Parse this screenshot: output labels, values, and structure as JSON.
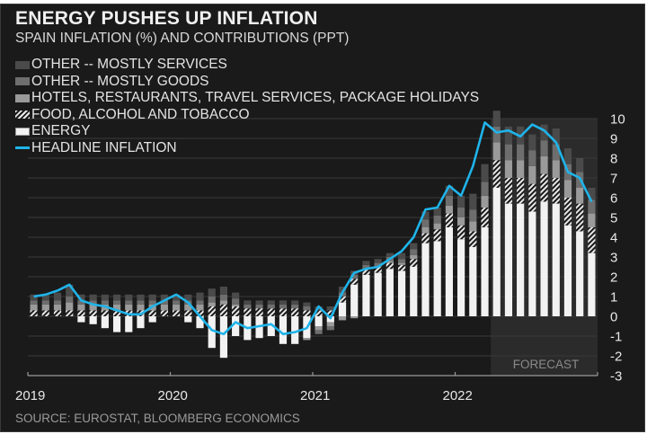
{
  "title": "ENERGY PUSHES UP INFLATION",
  "subtitle": "SPAIN INFLATION (%) AND CONTRIBUTIONS (PPT)",
  "source": "SOURCE: EUROSTAT, BLOOMBERG ECONOMICS",
  "forecast_label": "FORECAST",
  "colors": {
    "background": "#1a1a1a",
    "other_services": "#4a4a4a",
    "other_goods": "#6e6e6e",
    "hotels": "#9a9a9a",
    "food": "#e8e8e8",
    "energy": "#f2f2f2",
    "headline": "#1fb4ea",
    "forecast_shade": "#2b2b2b"
  },
  "chart_data": {
    "type": "bar",
    "stacked": true,
    "title": "ENERGY PUSHES UP INFLATION",
    "subtitle": "SPAIN INFLATION (%) AND CONTRIBUTIONS (PPT)",
    "xlabel": "",
    "ylabel": "",
    "ylim": [
      -3,
      10
    ],
    "yticks": [
      10,
      9,
      8,
      7,
      6,
      5,
      4,
      3,
      2,
      1,
      0,
      -1,
      -2,
      -3
    ],
    "xtick_labels": [
      "2019",
      "2020",
      "2021",
      "2022"
    ],
    "grid": true,
    "legend_position": "top-left",
    "forecast_start_index": 39,
    "categories": [
      "2019-01",
      "2019-02",
      "2019-03",
      "2019-04",
      "2019-05",
      "2019-06",
      "2019-07",
      "2019-08",
      "2019-09",
      "2019-10",
      "2019-11",
      "2019-12",
      "2020-01",
      "2020-02",
      "2020-03",
      "2020-04",
      "2020-05",
      "2020-06",
      "2020-07",
      "2020-08",
      "2020-09",
      "2020-10",
      "2020-11",
      "2020-12",
      "2021-01",
      "2021-02",
      "2021-03",
      "2021-04",
      "2021-05",
      "2021-06",
      "2021-07",
      "2021-08",
      "2021-09",
      "2021-10",
      "2021-11",
      "2021-12",
      "2022-01",
      "2022-02",
      "2022-03",
      "2022-04",
      "2022-05",
      "2022-06",
      "2022-07",
      "2022-08",
      "2022-09",
      "2022-10",
      "2022-11",
      "2022-12"
    ],
    "series": [
      {
        "name": "ENERGY",
        "type": "bar",
        "values": [
          0.0,
          0.0,
          0.0,
          0.0,
          -0.3,
          -0.4,
          -0.6,
          -0.8,
          -0.8,
          -0.6,
          -0.3,
          0.0,
          0.0,
          -0.3,
          -0.6,
          -1.6,
          -2.1,
          -1.0,
          -1.2,
          -1.1,
          -1.0,
          -1.4,
          -1.4,
          -1.1,
          -0.5,
          -0.3,
          0.7,
          1.6,
          2.1,
          2.2,
          2.4,
          2.3,
          2.5,
          3.7,
          3.8,
          4.5,
          3.9,
          3.5,
          4.5,
          6.5,
          5.7,
          5.7,
          5.3,
          5.8,
          5.7,
          4.6,
          4.3,
          3.2
        ]
      },
      {
        "name": "FOOD, ALCOHOL AND TOBACCO",
        "type": "bar",
        "values": [
          0.3,
          0.3,
          0.3,
          0.3,
          0.3,
          0.3,
          0.3,
          0.3,
          0.3,
          0.3,
          0.3,
          0.3,
          0.3,
          0.3,
          0.3,
          0.5,
          0.6,
          0.5,
          0.4,
          0.4,
          0.4,
          0.4,
          0.4,
          0.3,
          0.3,
          0.3,
          0.3,
          0.3,
          0.3,
          0.3,
          0.3,
          0.3,
          0.4,
          0.5,
          0.6,
          0.7,
          0.7,
          0.8,
          1.0,
          1.4,
          1.3,
          1.3,
          1.4,
          1.4,
          1.3,
          1.4,
          1.4,
          1.3
        ]
      },
      {
        "name": "HOTELS, RESTAURANTS, TRAVEL SERVICES, PACKAGE HOLIDAYS",
        "type": "bar",
        "values": [
          0.3,
          0.3,
          0.3,
          0.4,
          0.3,
          0.3,
          0.3,
          0.3,
          0.3,
          0.3,
          0.3,
          0.3,
          0.3,
          0.3,
          0.3,
          0.2,
          0.2,
          0.1,
          0.0,
          0.0,
          0.0,
          0.0,
          0.0,
          -0.1,
          -0.2,
          -0.2,
          -0.2,
          -0.1,
          0.0,
          0.0,
          0.1,
          0.1,
          0.2,
          0.3,
          0.3,
          0.4,
          0.4,
          0.5,
          0.6,
          0.9,
          0.9,
          0.9,
          0.9,
          0.9,
          0.9,
          0.9,
          0.8,
          0.7
        ]
      },
      {
        "name": "OTHER -- MOSTLY GOODS",
        "type": "bar",
        "values": [
          0.2,
          0.2,
          0.2,
          0.3,
          0.2,
          0.2,
          0.2,
          0.2,
          0.2,
          0.2,
          0.2,
          0.2,
          0.2,
          0.2,
          0.2,
          0.3,
          0.3,
          0.3,
          0.2,
          0.2,
          0.2,
          0.2,
          0.2,
          0.2,
          -0.2,
          -0.2,
          0.2,
          0.2,
          0.2,
          0.2,
          0.2,
          0.2,
          0.3,
          0.4,
          0.4,
          0.5,
          0.5,
          0.6,
          0.7,
          0.8,
          0.8,
          0.8,
          0.8,
          0.8,
          0.8,
          0.8,
          0.8,
          0.7
        ]
      },
      {
        "name": "OTHER -- MOSTLY SERVICES",
        "type": "bar",
        "values": [
          0.3,
          0.3,
          0.4,
          0.6,
          0.3,
          0.3,
          0.3,
          0.3,
          0.3,
          0.3,
          0.3,
          0.3,
          0.3,
          0.3,
          0.4,
          0.4,
          0.4,
          0.3,
          0.2,
          0.2,
          0.2,
          0.2,
          0.2,
          0.2,
          0.2,
          0.2,
          0.3,
          0.2,
          0.2,
          0.2,
          0.2,
          0.3,
          0.3,
          0.4,
          0.4,
          0.5,
          0.6,
          0.8,
          0.9,
          0.8,
          0.9,
          0.9,
          0.8,
          0.8,
          0.8,
          0.8,
          0.7,
          0.6
        ]
      },
      {
        "name": "HEADLINE INFLATION",
        "type": "line",
        "values": [
          1.0,
          1.1,
          1.3,
          1.6,
          0.8,
          0.6,
          0.5,
          0.3,
          0.1,
          0.1,
          0.5,
          0.8,
          1.1,
          0.7,
          0.0,
          -0.7,
          -0.9,
          -0.3,
          -0.6,
          -0.5,
          -0.4,
          -0.9,
          -0.8,
          -0.6,
          0.5,
          -0.1,
          1.2,
          2.2,
          2.4,
          2.5,
          2.9,
          3.3,
          4.0,
          5.4,
          5.5,
          6.6,
          6.1,
          7.6,
          9.8,
          9.3,
          9.4,
          9.1,
          9.7,
          9.4,
          8.8,
          7.3,
          7.0,
          5.8
        ]
      }
    ]
  },
  "legend": [
    {
      "label": "OTHER -- MOSTLY SERVICES",
      "key": "other_services"
    },
    {
      "label": "OTHER -- MOSTLY GOODS",
      "key": "other_goods"
    },
    {
      "label": "HOTELS, RESTAURANTS, TRAVEL SERVICES, PACKAGE HOLIDAYS",
      "key": "hotels"
    },
    {
      "label": "FOOD, ALCOHOL AND TOBACCO",
      "key": "food"
    },
    {
      "label": "ENERGY",
      "key": "energy"
    },
    {
      "label": "HEADLINE INFLATION",
      "key": "headline"
    }
  ]
}
